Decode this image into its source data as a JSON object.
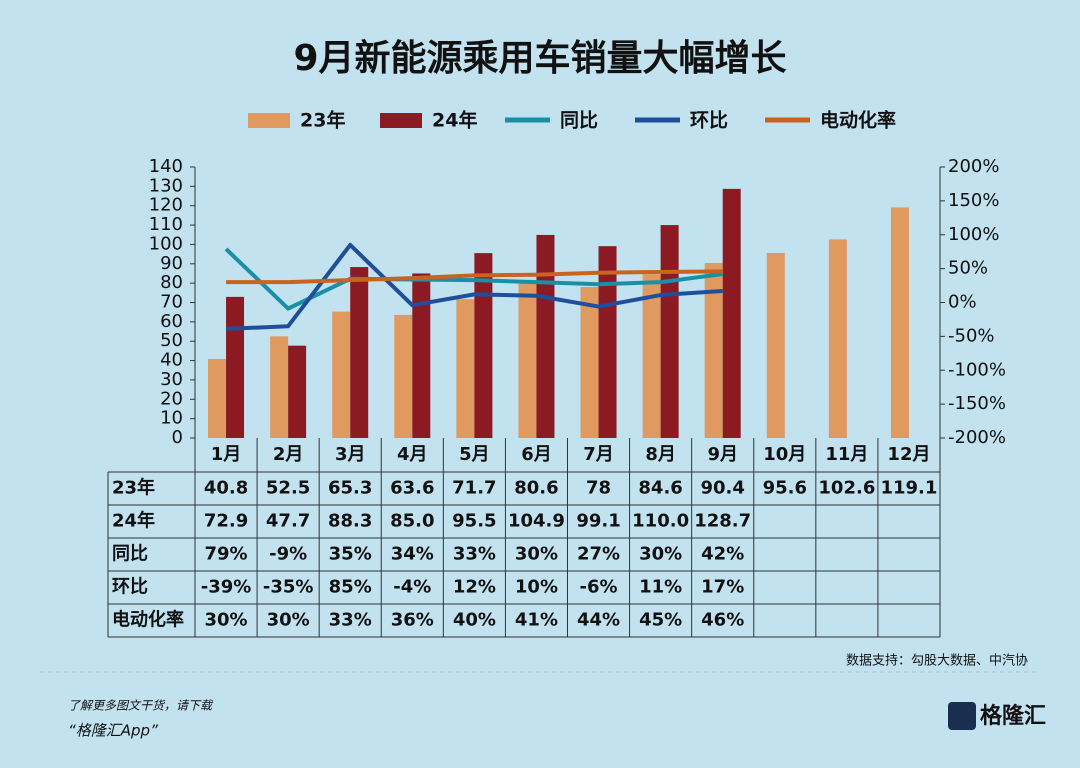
{
  "chart_data": {
    "type": "bar",
    "title": "9月新能源乘用车销量大幅增长",
    "categories": [
      "1月",
      "2月",
      "3月",
      "4月",
      "5月",
      "6月",
      "7月",
      "8月",
      "9月",
      "10月",
      "11月",
      "12月"
    ],
    "series": [
      {
        "name": "23年",
        "type": "bar",
        "color": "#e0995f",
        "values": [
          40.8,
          52.5,
          65.3,
          63.6,
          71.7,
          80.6,
          78.0,
          84.6,
          90.4,
          95.6,
          102.6,
          119.1
        ]
      },
      {
        "name": "24年",
        "type": "bar",
        "color": "#8b1a22",
        "values": [
          72.9,
          47.7,
          88.3,
          85.0,
          95.5,
          104.9,
          99.1,
          110.0,
          128.7,
          null,
          null,
          null
        ],
        "value_labels": [
          "72.9",
          "47.7",
          "88.3",
          "85.0",
          "95.5",
          "104.9",
          "99.1",
          "110.0",
          "128.7",
          null,
          null,
          null
        ]
      },
      {
        "name": "同比",
        "type": "line",
        "axis": "y2",
        "color": "#1a8fa8",
        "values": [
          79,
          -9,
          35,
          34,
          33,
          30,
          27,
          30,
          42,
          null,
          null,
          null
        ],
        "value_labels": [
          "79%",
          "-9%",
          "35%",
          "34%",
          "33%",
          "30%",
          "27%",
          "30%",
          "42%",
          null,
          null,
          null
        ]
      },
      {
        "name": "环比",
        "type": "line",
        "axis": "y2",
        "color": "#1f4e9c",
        "values": [
          -39,
          -35,
          85,
          -4,
          12,
          10,
          -6,
          11,
          17,
          null,
          null,
          null
        ],
        "value_labels": [
          "-39%",
          "-35%",
          "85%",
          "-4%",
          "12%",
          "10%",
          "-6%",
          "11%",
          "17%",
          null,
          null,
          null
        ]
      },
      {
        "name": "电动化率",
        "type": "line",
        "axis": "y2",
        "color": "#c8641e",
        "values": [
          30,
          30,
          33,
          36,
          40,
          41,
          44,
          45,
          46,
          null,
          null,
          null
        ],
        "value_labels": [
          "30%",
          "30%",
          "33%",
          "36%",
          "40%",
          "41%",
          "44%",
          "45%",
          "46%",
          null,
          null,
          null
        ]
      }
    ],
    "ylim": [
      0,
      140
    ],
    "yticks": [
      0,
      10,
      20,
      30,
      40,
      50,
      60,
      70,
      80,
      90,
      100,
      110,
      120,
      130,
      140
    ],
    "y2lim": [
      -200,
      200
    ],
    "y2ticks": [
      {
        "value": -200,
        "label": "-200%"
      },
      {
        "value": -150,
        "label": "-150%"
      },
      {
        "value": -100,
        "label": "-100%"
      },
      {
        "value": -50,
        "label": "-50%"
      },
      {
        "value": 0,
        "label": "0%"
      },
      {
        "value": 50,
        "label": "50%"
      },
      {
        "value": 100,
        "label": "100%"
      },
      {
        "value": 150,
        "label": "150%"
      },
      {
        "value": 200,
        "label": "200%"
      }
    ],
    "source": "数据支持：勾股大数据、中汽协",
    "footer_note": "了解更多图文干货，请下载",
    "footer_app": "“格隆汇App”",
    "logo": "格隆汇"
  }
}
